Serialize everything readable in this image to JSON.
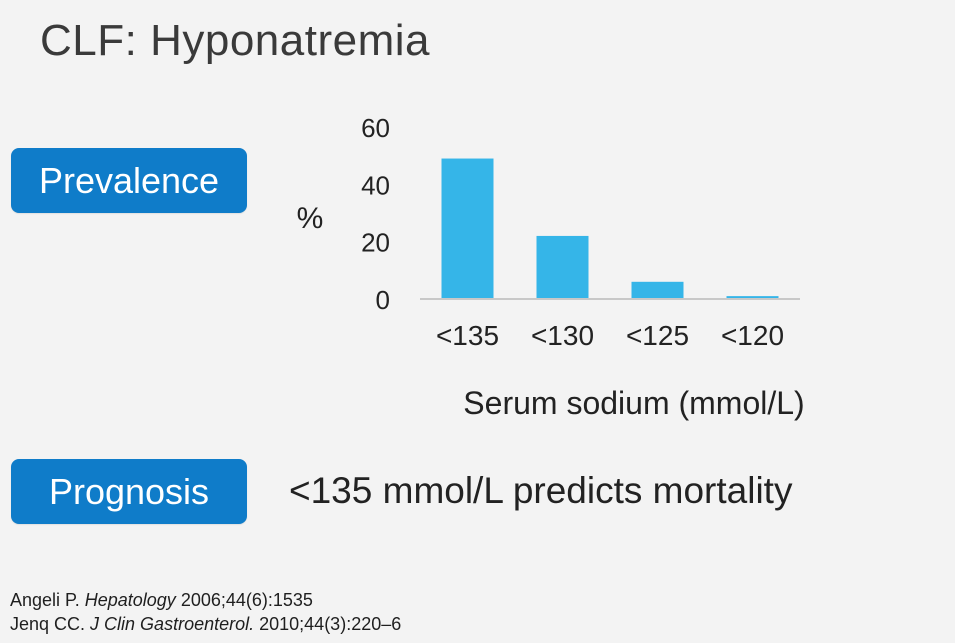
{
  "slide": {
    "title": "CLF: Hyponatremia",
    "prevalence_label": "Prevalence",
    "prognosis_label": "Prognosis",
    "prognosis_text": "<135 mmol/L predicts mortality"
  },
  "references": [
    {
      "author": "Angeli P. ",
      "journal": "Hepatology",
      "details": " 2006;44(6):1535"
    },
    {
      "author": "Jenq CC. ",
      "journal": "J Clin Gastroenterol.",
      "details": " 2010;44(3):220–6"
    }
  ],
  "colors": {
    "accent": "#0f7cc9",
    "bar": "#35b5e8",
    "axis": "#c8c8c8"
  },
  "chart_data": {
    "type": "bar",
    "categories": [
      "<135",
      "<130",
      "<125",
      "<120"
    ],
    "values": [
      49,
      22,
      6,
      1
    ],
    "ylabel": "%",
    "xlabel": "Serum sodium (mmol/L)",
    "yticks": [
      0,
      20,
      40,
      60
    ],
    "ylim": [
      0,
      60
    ],
    "grid": false
  }
}
